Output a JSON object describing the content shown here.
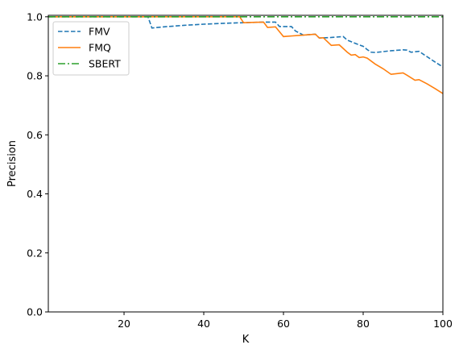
{
  "chart_data": {
    "type": "line",
    "title": "",
    "xlabel": "K",
    "ylabel": "Precision",
    "xlim": [
      1,
      100
    ],
    "ylim": [
      0,
      1.005
    ],
    "xticks": [
      20,
      40,
      60,
      80,
      100
    ],
    "xtick_labels": [
      "20",
      "40",
      "60",
      "80",
      "100"
    ],
    "yticks": [
      0.0,
      0.2,
      0.4,
      0.6,
      0.8,
      1.0
    ],
    "ytick_labels": [
      "0.0",
      "0.2",
      "0.4",
      "0.6",
      "0.8",
      "1.0"
    ],
    "grid": false,
    "legend_position": "top-left",
    "series": [
      {
        "name": "FMV",
        "color": "#1f77b4",
        "linestyle": "dashed",
        "x": [
          1,
          26,
          27,
          30,
          35,
          40,
          45,
          50,
          55,
          58,
          59,
          62,
          63,
          65,
          68,
          69,
          72,
          75,
          76,
          78,
          80,
          81,
          82,
          83,
          85,
          87,
          90,
          91,
          92,
          94,
          96,
          98,
          100
        ],
        "y": [
          1.0,
          1.0,
          0.962,
          0.966,
          0.971,
          0.975,
          0.978,
          0.98,
          0.982,
          0.982,
          0.967,
          0.967,
          0.952,
          0.938,
          0.941,
          0.928,
          0.93,
          0.933,
          0.921,
          0.91,
          0.9,
          0.889,
          0.88,
          0.879,
          0.882,
          0.885,
          0.888,
          0.887,
          0.88,
          0.883,
          0.865,
          0.847,
          0.83
        ]
      },
      {
        "name": "FMQ",
        "color": "#ff7f0e",
        "linestyle": "solid",
        "x": [
          1,
          49,
          50,
          52,
          55,
          56,
          58,
          60,
          62,
          65,
          66,
          68,
          69,
          70,
          72,
          74,
          76,
          77,
          78,
          79,
          80,
          81,
          83,
          85,
          87,
          90,
          91,
          93,
          94,
          96,
          98,
          100
        ],
        "y": [
          1.0,
          1.0,
          0.98,
          0.981,
          0.982,
          0.964,
          0.966,
          0.933,
          0.935,
          0.938,
          0.939,
          0.941,
          0.928,
          0.929,
          0.903,
          0.905,
          0.88,
          0.87,
          0.872,
          0.862,
          0.864,
          0.86,
          0.84,
          0.824,
          0.805,
          0.81,
          0.802,
          0.785,
          0.787,
          0.773,
          0.757,
          0.74
        ]
      },
      {
        "name": "SBERT",
        "color": "#2ca02c",
        "linestyle": "dashdot",
        "x": [
          1,
          100
        ],
        "y": [
          1.0,
          1.0
        ]
      }
    ]
  }
}
